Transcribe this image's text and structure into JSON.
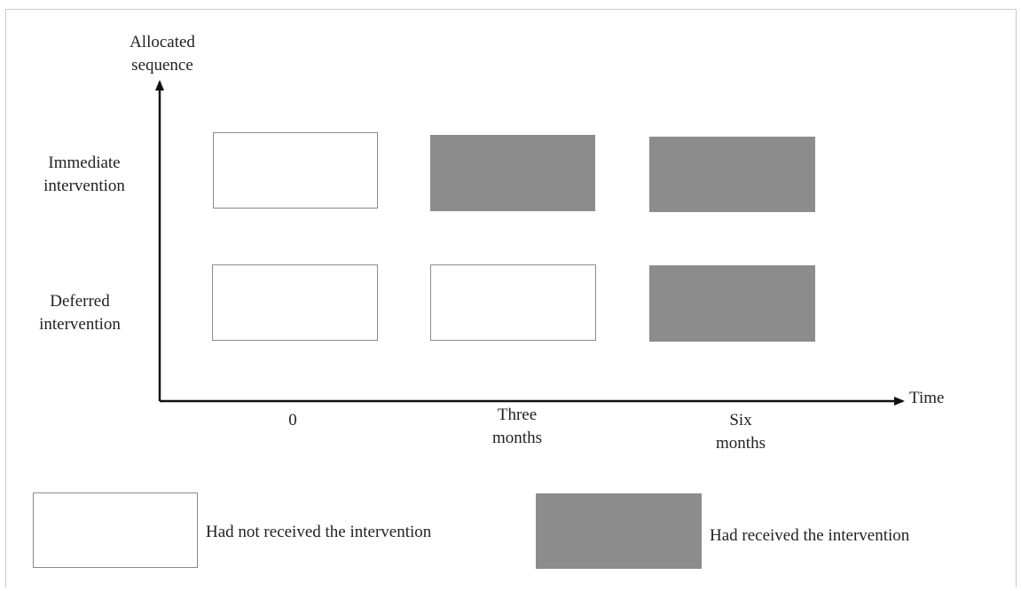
{
  "axes": {
    "y_label": "Allocated\nsequence",
    "x_label": "Time",
    "time_points": [
      "0",
      "Three\nmonths",
      "Six\nmonths"
    ]
  },
  "rows": [
    {
      "label": "Immediate\nintervention",
      "states": [
        "not_received",
        "received",
        "received"
      ]
    },
    {
      "label": "Deferred\nintervention",
      "states": [
        "not_received",
        "not_received",
        "received"
      ]
    }
  ],
  "legend": {
    "not_received": "Had not received the intervention",
    "received": "Had received the intervention"
  },
  "colors": {
    "received_fill": "#8c8c8c",
    "not_received_fill": "#ffffff",
    "box_border": "#8a8a8a",
    "axis": "#111111"
  }
}
